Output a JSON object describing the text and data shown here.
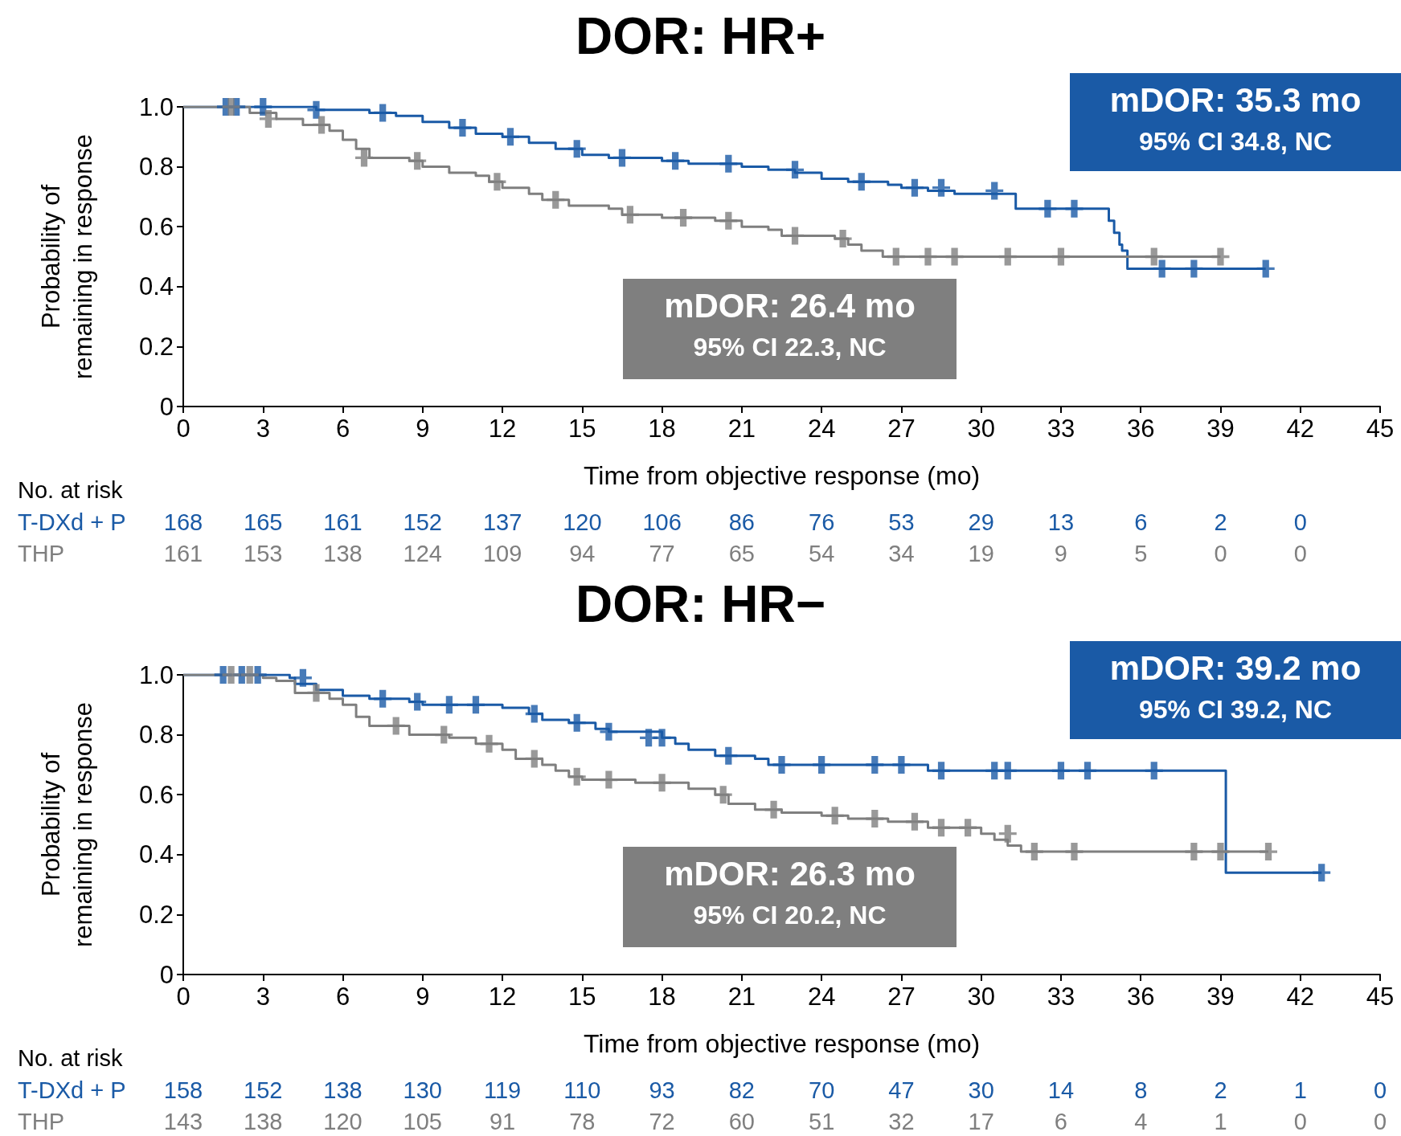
{
  "chart_data": [
    {
      "type": "step",
      "title": "DOR: HR+",
      "xlabel": "Time from objective response (mo)",
      "ylabel": "Probability of remaining in response",
      "xlim": [
        0,
        45
      ],
      "xticks": [
        0,
        3,
        6,
        9,
        12,
        15,
        18,
        21,
        24,
        27,
        30,
        33,
        36,
        39,
        42,
        45
      ],
      "ylim": [
        0,
        1
      ],
      "yticks": [
        0,
        0.2,
        0.4,
        0.6,
        0.8,
        {
          "value": 1,
          "label": "1.0"
        }
      ],
      "grid": false,
      "annotations": [
        "mDOR: 35.3 mo",
        "95% CI 34.8, NC",
        "mDOR: 26.4 mo",
        "95% CI 22.3, NC",
        "No. at risk",
        "T-DXd + P",
        "168",
        "165",
        "161",
        "152",
        "137",
        "120",
        "106",
        "86",
        "76",
        "53",
        "29",
        "13",
        "6",
        "2",
        "0",
        "THP",
        "161",
        "153",
        "138",
        "124",
        "109",
        "94",
        "77",
        "65",
        "54",
        "34",
        "19",
        "9",
        "5",
        "0",
        "0"
      ],
      "series": [
        {
          "color": "#1a5aa6",
          "x": [
            0,
            5,
            7,
            8,
            9,
            10,
            11,
            12,
            13,
            14,
            15,
            16,
            18,
            19,
            21,
            22,
            23,
            24,
            25,
            26.5,
            27,
            28,
            29,
            31.3,
            34.8,
            35,
            35.2,
            35.3,
            35.5,
            40.7
          ],
          "values": [
            1,
            0.99,
            0.98,
            0.97,
            0.95,
            0.93,
            0.91,
            0.9,
            0.88,
            0.86,
            0.84,
            0.83,
            0.82,
            0.81,
            0.8,
            0.79,
            0.78,
            0.76,
            0.75,
            0.74,
            0.73,
            0.72,
            0.71,
            0.66,
            0.62,
            0.58,
            0.54,
            0.52,
            0.46,
            0.46
          ]
        },
        {
          "color": "#7f7f7f",
          "x": [
            0,
            2.5,
            3.5,
            4.5,
            5.5,
            6,
            6.5,
            7,
            8.5,
            9,
            10,
            11,
            11.5,
            12,
            13,
            13.5,
            14.5,
            16,
            16.5,
            18,
            20,
            21,
            22,
            22.5,
            24.5,
            25,
            25.5,
            26.3,
            39
          ],
          "values": [
            1,
            0.98,
            0.96,
            0.94,
            0.92,
            0.89,
            0.86,
            0.83,
            0.82,
            0.8,
            0.78,
            0.77,
            0.75,
            0.73,
            0.71,
            0.69,
            0.67,
            0.66,
            0.64,
            0.63,
            0.62,
            0.6,
            0.59,
            0.57,
            0.56,
            0.54,
            0.52,
            0.5,
            0.5
          ]
        },
        {
          "type": "scatter",
          "marker": "cross",
          "color": "#1a5aa6",
          "x": [
            1.6,
            2,
            3,
            5,
            7.5,
            10.5,
            12.3,
            14.8,
            16.5,
            18.5,
            20.5,
            23,
            25.5,
            27.5,
            28.5,
            30.5,
            32.5,
            33.5,
            36.8,
            38,
            40.7
          ],
          "values": [
            1,
            1,
            1,
            0.99,
            0.98,
            0.93,
            0.9,
            0.86,
            0.83,
            0.82,
            0.81,
            0.79,
            0.75,
            0.73,
            0.73,
            0.72,
            0.66,
            0.66,
            0.46,
            0.46,
            0.46
          ]
        },
        {
          "type": "scatter",
          "marker": "cross",
          "color": "#7f7f7f",
          "x": [
            1.8,
            3.2,
            5.2,
            6.8,
            8.8,
            11.8,
            14,
            16.8,
            18.8,
            20.5,
            23,
            24.8,
            26.8,
            28,
            29,
            31,
            33,
            36.5,
            39
          ],
          "values": [
            1,
            0.96,
            0.94,
            0.83,
            0.82,
            0.75,
            0.69,
            0.64,
            0.63,
            0.62,
            0.57,
            0.56,
            0.5,
            0.5,
            0.5,
            0.5,
            0.5,
            0.5,
            0.5
          ]
        }
      ]
    },
    {
      "type": "step",
      "title": "DOR: HR−",
      "xlabel": "Time from objective response (mo)",
      "ylabel": "Probability of remaining in response",
      "xlim": [
        0,
        45
      ],
      "xticks": [
        0,
        3,
        6,
        9,
        12,
        15,
        18,
        21,
        24,
        27,
        30,
        33,
        36,
        39,
        42,
        45
      ],
      "ylim": [
        0,
        1
      ],
      "yticks": [
        0,
        0.2,
        0.4,
        0.6,
        0.8,
        {
          "value": 1,
          "label": "1.0"
        }
      ],
      "grid": false,
      "annotations": [
        "mDOR: 39.2 mo",
        "95% CI 39.2, NC",
        "mDOR: 26.3 mo",
        "95% CI 20.2, NC",
        "No. at risk",
        "T-DXd + P",
        "158",
        "152",
        "138",
        "130",
        "119",
        "110",
        "93",
        "82",
        "70",
        "47",
        "30",
        "14",
        "8",
        "2",
        "1",
        "0",
        "THP",
        "143",
        "138",
        "120",
        "105",
        "91",
        "78",
        "72",
        "60",
        "51",
        "32",
        "17",
        "6",
        "4",
        "1",
        "0",
        "0"
      ],
      "series": [
        {
          "color": "#1a5aa6",
          "x": [
            0,
            4,
            4.2,
            5,
            6,
            7,
            8.5,
            9,
            12,
            13,
            13.5,
            14.5,
            15.5,
            16,
            18,
            18.5,
            19,
            20,
            21.5,
            22,
            28,
            39.2,
            42.8
          ],
          "values": [
            1,
            0.99,
            0.97,
            0.95,
            0.93,
            0.92,
            0.91,
            0.9,
            0.89,
            0.87,
            0.85,
            0.84,
            0.82,
            0.81,
            0.79,
            0.77,
            0.75,
            0.73,
            0.72,
            0.7,
            0.68,
            0.34,
            0.34
          ]
        },
        {
          "color": "#7f7f7f",
          "x": [
            0,
            3,
            3.5,
            4.2,
            5.5,
            6,
            6.5,
            7,
            8.5,
            10,
            11,
            12,
            12.5,
            13.5,
            14,
            14.5,
            15,
            17,
            19,
            20,
            20.5,
            21.5,
            22.5,
            24,
            25,
            26.5,
            28,
            30,
            30.5,
            31,
            31.5,
            40.8
          ],
          "values": [
            1,
            0.99,
            0.98,
            0.94,
            0.92,
            0.9,
            0.86,
            0.83,
            0.8,
            0.79,
            0.77,
            0.75,
            0.72,
            0.7,
            0.68,
            0.66,
            0.65,
            0.64,
            0.62,
            0.6,
            0.57,
            0.55,
            0.54,
            0.53,
            0.52,
            0.51,
            0.49,
            0.47,
            0.45,
            0.43,
            0.41,
            0.41
          ]
        },
        {
          "type": "scatter",
          "marker": "cross",
          "color": "#1a5aa6",
          "x": [
            1.5,
            2.2,
            2.8,
            4.5,
            7.5,
            8.8,
            10,
            11,
            13.2,
            14.8,
            16,
            17.5,
            18,
            20.5,
            22.5,
            24,
            26,
            27,
            28.5,
            30.5,
            31,
            33,
            34,
            36.5,
            42.8
          ],
          "values": [
            1,
            1,
            1,
            0.99,
            0.92,
            0.91,
            0.9,
            0.9,
            0.87,
            0.84,
            0.81,
            0.79,
            0.79,
            0.73,
            0.7,
            0.7,
            0.7,
            0.7,
            0.68,
            0.68,
            0.68,
            0.68,
            0.68,
            0.68,
            0.34
          ]
        },
        {
          "type": "scatter",
          "marker": "cross",
          "color": "#7f7f7f",
          "x": [
            1.8,
            2.5,
            5,
            8,
            9.8,
            11.5,
            13.2,
            14.8,
            16,
            18,
            20.3,
            22.2,
            24.5,
            26,
            27.5,
            28.5,
            29.5,
            31,
            32,
            33.5,
            38,
            39,
            40.8
          ],
          "values": [
            1,
            1,
            0.94,
            0.83,
            0.8,
            0.77,
            0.72,
            0.66,
            0.65,
            0.64,
            0.6,
            0.55,
            0.53,
            0.52,
            0.51,
            0.49,
            0.49,
            0.47,
            0.41,
            0.41,
            0.41,
            0.41,
            0.41
          ]
        }
      ]
    }
  ]
}
